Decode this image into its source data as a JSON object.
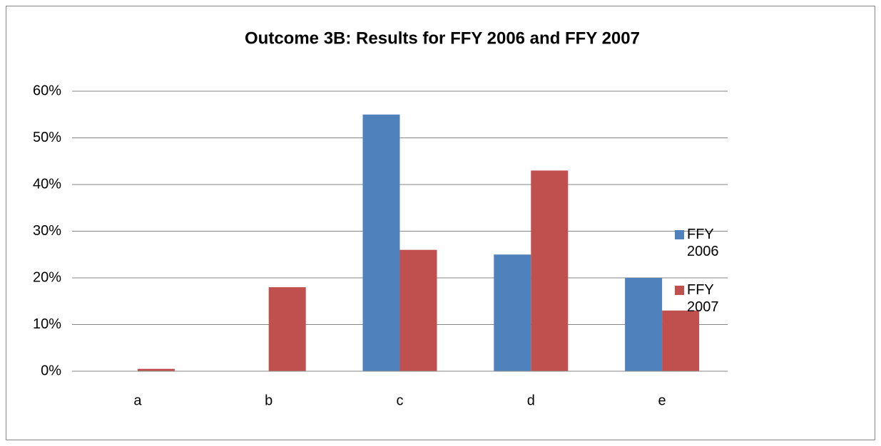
{
  "chart_data": {
    "type": "bar",
    "title": "Outcome 3B: Results for FFY 2006 and FFY 2007",
    "categories": [
      "a",
      "b",
      "c",
      "d",
      "e"
    ],
    "series": [
      {
        "name": "FFY 2006",
        "color": "#4f81bd",
        "values": [
          0,
          0,
          55,
          25,
          20
        ]
      },
      {
        "name": "FFY 2007",
        "color": "#c0504d",
        "values": [
          0.5,
          18,
          26,
          43,
          13
        ]
      }
    ],
    "ylim": [
      0,
      60
    ],
    "yticks": [
      {
        "value": 0,
        "label": "0%"
      },
      {
        "value": 10,
        "label": "10%"
      },
      {
        "value": 20,
        "label": "20%"
      },
      {
        "value": 30,
        "label": "30%"
      },
      {
        "value": 40,
        "label": "40%"
      },
      {
        "value": 50,
        "label": "50%"
      },
      {
        "value": 60,
        "label": "60%"
      }
    ],
    "grid": true,
    "legend": "right"
  }
}
